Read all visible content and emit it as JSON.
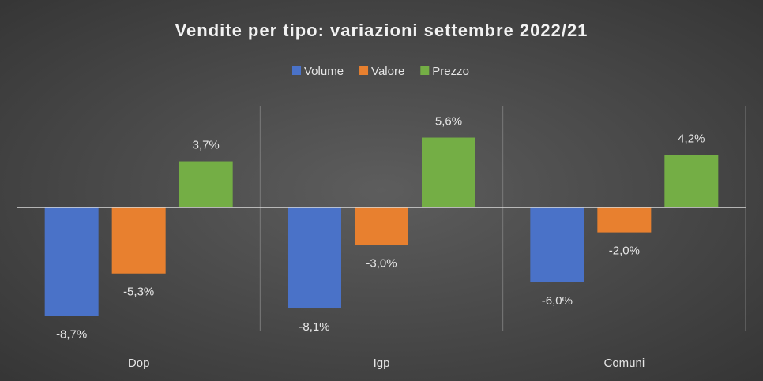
{
  "chart_data": {
    "type": "bar",
    "title": "Vendite per tipo: variazioni settembre 2022/21",
    "categories": [
      "Dop",
      "Igp",
      "Comuni"
    ],
    "series": [
      {
        "name": "Volume",
        "color": "#4a72c8",
        "values": [
          -8.7,
          -8.1,
          -6.0
        ],
        "value_labels": [
          "-8,7%",
          "-8,1%",
          "-6,0%"
        ]
      },
      {
        "name": "Valore",
        "color": "#e8802f",
        "values": [
          -5.3,
          -3.0,
          -2.0
        ],
        "value_labels": [
          "-5,3%",
          "-3,0%",
          "-2,0%"
        ]
      },
      {
        "name": "Prezzo",
        "color": "#74ae45",
        "values": [
          3.7,
          5.6,
          4.2
        ],
        "value_labels": [
          "3,7%",
          "5,6%",
          "4,2%"
        ]
      }
    ],
    "legend": "top"
  }
}
